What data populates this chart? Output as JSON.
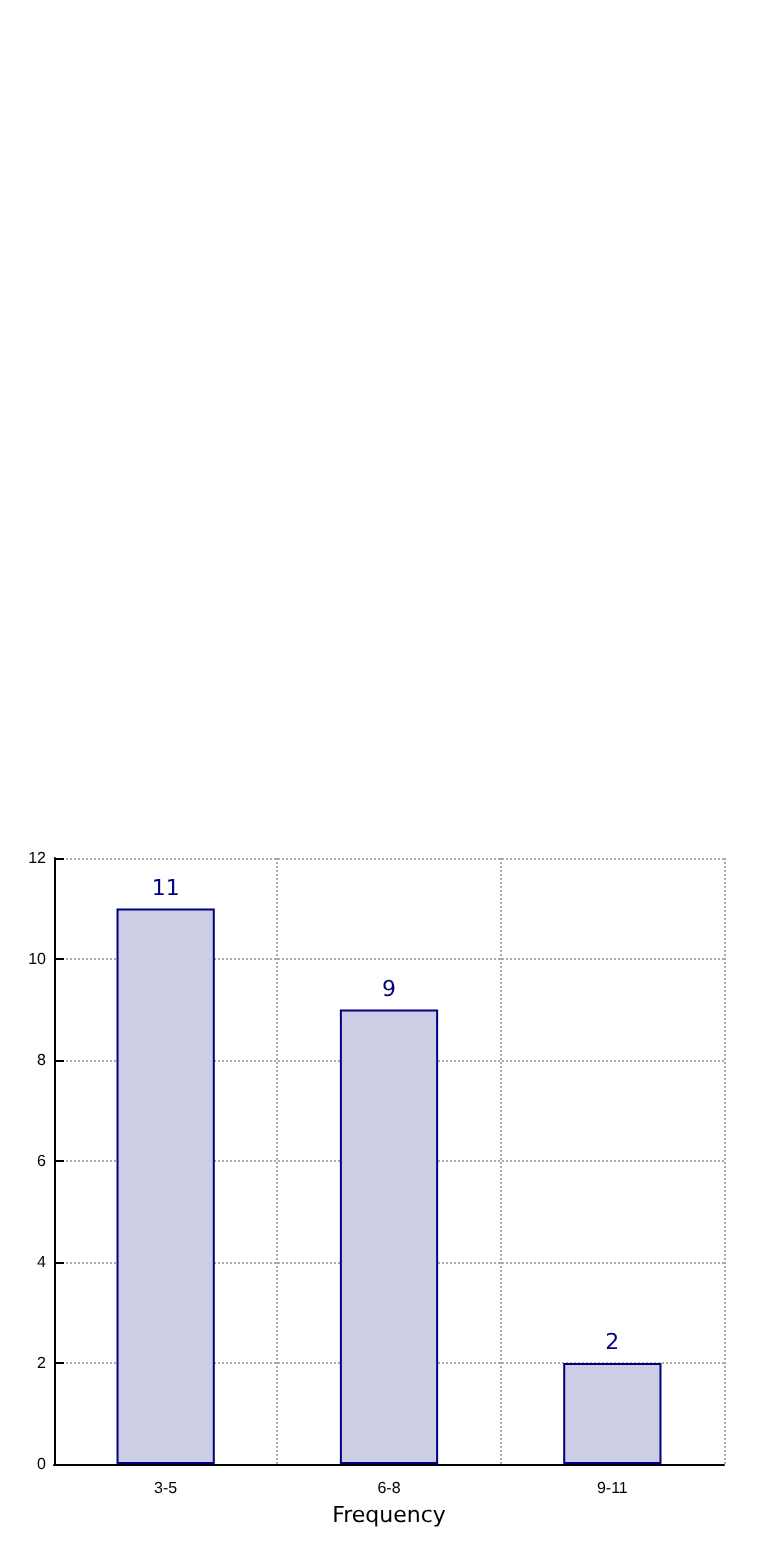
{
  "chart_data": {
    "type": "bar",
    "xlabel": "Frequency",
    "categories": [
      "3-5",
      "6-8",
      "9-11"
    ],
    "values": [
      11,
      9,
      2
    ],
    "color": "#cdcde6",
    "ylim": [
      0,
      12
    ],
    "yticks": [
      0,
      2,
      4,
      6,
      8,
      10,
      12
    ],
    "grid": true,
    "data_labels": true
  }
}
